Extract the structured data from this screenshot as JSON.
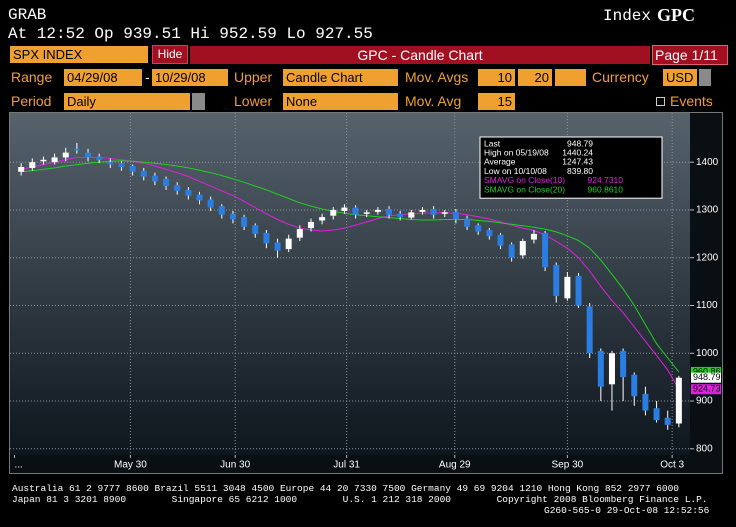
{
  "header": {
    "function": "GRAB",
    "security_type": "Index",
    "ticker": "GPC",
    "quote": "At 12:52  Op 939.51 Hi 952.59 Lo 927.55"
  },
  "toolbar": {
    "security": "SPX INDEX",
    "hide": "Hide",
    "title": "GPC - Candle Chart",
    "page": "Page 1/11",
    "range_label": "Range",
    "range_start": "04/29/08",
    "range_sep": "-",
    "range_end": "10/29/08",
    "upper_label": "Upper",
    "upper": "Candle Chart",
    "mov_avgs_label": "Mov. Avgs",
    "mov_avg_1": "10",
    "mov_avg_2": "20",
    "currency_label": "Currency",
    "currency": "USD",
    "period_label": "Period",
    "period": "Daily",
    "lower_label": "Lower",
    "lower": "None",
    "mov_avg_label": "Mov. Avg",
    "mov_avg_lower": "15",
    "events": "Events"
  },
  "chart_data": {
    "type": "candlestick",
    "xlim": [
      -1,
      60
    ],
    "xticks": [
      {
        "value": -0.6,
        "label": "..."
      },
      {
        "value": 9.8,
        "label": "May 30"
      },
      {
        "value": 19.2,
        "label": "Jun 30"
      },
      {
        "value": 29.2,
        "label": "Jul 31"
      },
      {
        "value": 38.9,
        "label": "Aug 29"
      },
      {
        "value": 49,
        "label": "Sep 30"
      },
      {
        "value": 58.4,
        "label": "Oct 3"
      }
    ],
    "ylim": [
      787,
      1503
    ],
    "yticks": [
      800,
      900,
      1000,
      1100,
      1200,
      1300,
      1400
    ],
    "grid": true,
    "up_color": "#ffffff",
    "down_color": "#2a7de1",
    "open": [
      1380,
      1388,
      1402,
      1400,
      1410,
      1428,
      1420,
      1412,
      1400,
      1398,
      1392,
      1382,
      1372,
      1365,
      1352,
      1342,
      1332,
      1322,
      1308,
      1292,
      1285,
      1268,
      1252,
      1232,
      1218,
      1242,
      1262,
      1278,
      1288,
      1298,
      1305,
      1292,
      1296,
      1302,
      1292,
      1284,
      1296,
      1302,
      1292,
      1296,
      1282,
      1268,
      1258,
      1248,
      1228,
      1205,
      1238,
      1252,
      1185,
      1115,
      1162,
      1098,
      1005,
      935,
      1005,
      955,
      915,
      885,
      865,
      853
    ],
    "high": [
      1398,
      1408,
      1412,
      1418,
      1430,
      1440.24,
      1428,
      1418,
      1408,
      1402,
      1395,
      1388,
      1378,
      1370,
      1358,
      1348,
      1338,
      1328,
      1312,
      1298,
      1290,
      1272,
      1258,
      1240,
      1248,
      1268,
      1282,
      1292,
      1306,
      1312,
      1310,
      1300,
      1306,
      1308,
      1298,
      1300,
      1306,
      1308,
      1300,
      1302,
      1288,
      1272,
      1262,
      1252,
      1232,
      1240,
      1258,
      1256,
      1190,
      1170,
      1168,
      1105,
      1010,
      1005,
      1010,
      960,
      930,
      900,
      880,
      952.59
    ],
    "low": [
      1372,
      1382,
      1395,
      1395,
      1402,
      1418,
      1402,
      1398,
      1388,
      1382,
      1372,
      1362,
      1352,
      1342,
      1332,
      1322,
      1312,
      1298,
      1282,
      1272,
      1258,
      1242,
      1220,
      1200,
      1212,
      1235,
      1255,
      1270,
      1280,
      1292,
      1282,
      1285,
      1290,
      1282,
      1278,
      1280,
      1290,
      1282,
      1285,
      1272,
      1258,
      1248,
      1238,
      1218,
      1192,
      1198,
      1230,
      1172,
      1106,
      1110,
      1095,
      990,
      900,
      880,
      900,
      890,
      870,
      855,
      839.8,
      845
    ],
    "close": [
      1390,
      1400,
      1405,
      1410,
      1420,
      1425,
      1410,
      1405,
      1395,
      1390,
      1380,
      1370,
      1360,
      1350,
      1340,
      1330,
      1320,
      1305,
      1290,
      1280,
      1265,
      1250,
      1230,
      1215,
      1240,
      1260,
      1275,
      1285,
      1300,
      1305,
      1290,
      1295,
      1300,
      1290,
      1285,
      1295,
      1300,
      1290,
      1295,
      1280,
      1265,
      1255,
      1245,
      1225,
      1200,
      1235,
      1250,
      1180,
      1120,
      1160,
      1100,
      1000,
      930,
      1000,
      950,
      910,
      880,
      860,
      850,
      948.79
    ],
    "series": [
      {
        "name": "SMAVG on Close(10)",
        "color": "#e020e0",
        "value_label": "924.7310",
        "tag": "924.73",
        "values": [
          1385,
          1390,
          1395,
          1400,
          1405,
          1410,
          1410,
          1410,
          1408,
          1405,
          1402,
          1398,
          1392,
          1385,
          1378,
          1370,
          1360,
          1350,
          1340,
          1330,
          1318,
          1305,
          1292,
          1280,
          1270,
          1262,
          1258,
          1256,
          1258,
          1262,
          1268,
          1275,
          1282,
          1288,
          1290,
          1292,
          1293,
          1294,
          1294,
          1293,
          1290,
          1286,
          1281,
          1275,
          1268,
          1262,
          1257,
          1248,
          1234,
          1220,
          1200,
          1172,
          1140,
          1110,
          1085,
          1055,
          1025,
          995,
          965,
          924.73
        ]
      },
      {
        "name": "SMAVG on Close(20)",
        "color": "#20d020",
        "value_label": "960.8610",
        "tag": "960.86",
        "values": [
          1380,
          1382,
          1385,
          1388,
          1392,
          1395,
          1398,
          1400,
          1402,
          1403,
          1402,
          1400,
          1398,
          1395,
          1392,
          1388,
          1383,
          1378,
          1372,
          1365,
          1358,
          1350,
          1342,
          1333,
          1324,
          1315,
          1308,
          1302,
          1297,
          1293,
          1290,
          1288,
          1286,
          1284,
          1282,
          1280,
          1279,
          1279,
          1280,
          1280,
          1280,
          1278,
          1276,
          1273,
          1270,
          1267,
          1264,
          1260,
          1254,
          1246,
          1236,
          1220,
          1195,
          1165,
          1135,
          1100,
          1060,
          1020,
          990,
          960.86
        ]
      }
    ],
    "last_tag": "948.79",
    "stats": [
      {
        "label": "Last",
        "value": "948.79"
      },
      {
        "label": "High on 05/19/08",
        "value": "1440.24"
      },
      {
        "label": "Average",
        "value": "1247.43"
      },
      {
        "label": "Low on 10/10/08",
        "value": "839.80"
      }
    ]
  },
  "footer": {
    "line1": "Australia 61 2 9777 8600 Brazil 5511 3048 4500 Europe 44 20 7330 7500 Germany 49 69 9204 1210 Hong Kong 852 2977 6000",
    "line2": "Japan 81 3 3201 8900        Singapore 65 6212 1000        U.S. 1 212 318 2000        Copyright 2008 Bloomberg Finance L.P.",
    "line3": "G260-565-0 29-Oct-08 12:52:56"
  }
}
